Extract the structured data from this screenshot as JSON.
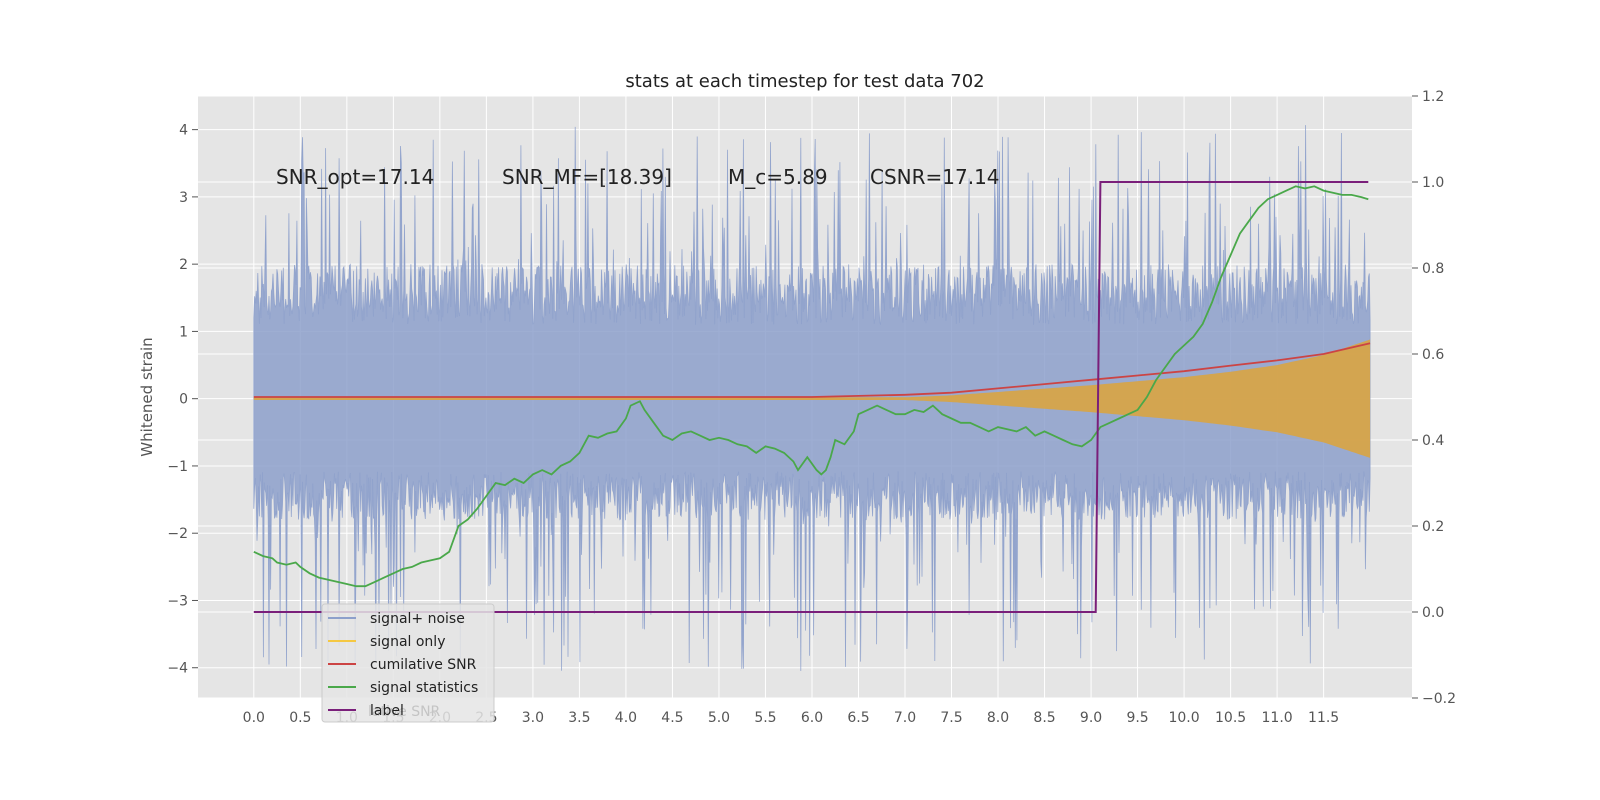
{
  "chart_data": {
    "type": "line",
    "title": "stats at each timestep for test data 702",
    "xlabel": "",
    "ylabel": "Whitened strain",
    "y2label": "",
    "xlim": [
      -0.6,
      12.45
    ],
    "ylim": [
      -4.45,
      4.5
    ],
    "y2lim": [
      -0.2,
      1.2
    ],
    "xticks": [
      "0.0",
      "0.5",
      "1.0",
      "1.5",
      "2.0",
      "2.5",
      "3.0",
      "3.5",
      "4.0",
      "4.5",
      "5.0",
      "5.5",
      "6.0",
      "6.5",
      "7.0",
      "7.5",
      "8.0",
      "8.5",
      "9.0",
      "9.5",
      "10.0",
      "10.5",
      "11.0",
      "11.5"
    ],
    "yticks": [
      "4",
      "3",
      "2",
      "1",
      "0",
      "−1",
      "−2",
      "−3",
      "−4"
    ],
    "y2ticks": [
      "1.2",
      "1.0",
      "0.8",
      "0.6",
      "0.4",
      "0.2",
      "0.0",
      "−0.2"
    ],
    "grid": true,
    "legend_position": "lower-left",
    "annotations": [
      {
        "id": "snr_opt",
        "text": "SNR_opt=17.14"
      },
      {
        "id": "snr_mf",
        "text": "SNR_MF=[18.39]"
      },
      {
        "id": "mc",
        "text": "M_c=5.89"
      },
      {
        "id": "csnr",
        "text": "CSNR=17.14"
      }
    ],
    "series": [
      {
        "name": "signal+ noise",
        "axis": "left",
        "style": "noisy-band",
        "x_range": [
          0.0,
          12.0
        ],
        "envelope_upper": [
          [
            0.0,
            2.0
          ],
          [
            6.0,
            2.0
          ],
          [
            12.0,
            2.0
          ]
        ],
        "envelope_lower": [
          [
            0.0,
            -1.8
          ],
          [
            6.0,
            -1.8
          ],
          [
            12.0,
            -1.8
          ]
        ],
        "spike_max": 4.1,
        "spike_min": -4.05
      },
      {
        "name": "signal only",
        "axis": "left",
        "style": "chirp-band",
        "envelope": [
          [
            0.0,
            0.02
          ],
          [
            7.0,
            0.02
          ],
          [
            7.5,
            0.05
          ],
          [
            8.0,
            0.1
          ],
          [
            8.5,
            0.15
          ],
          [
            9.0,
            0.2
          ],
          [
            9.5,
            0.26
          ],
          [
            10.0,
            0.32
          ],
          [
            10.5,
            0.4
          ],
          [
            11.0,
            0.5
          ],
          [
            11.5,
            0.65
          ],
          [
            12.0,
            0.88
          ]
        ],
        "lower_scale": 1.0
      },
      {
        "name": "cumilative SNR",
        "axis": "right",
        "points": [
          [
            0.0,
            0.5
          ],
          [
            6.0,
            0.5
          ],
          [
            7.0,
            0.505
          ],
          [
            7.5,
            0.51
          ],
          [
            8.0,
            0.52
          ],
          [
            8.5,
            0.53
          ],
          [
            9.0,
            0.54
          ],
          [
            9.5,
            0.55
          ],
          [
            10.0,
            0.56
          ],
          [
            10.5,
            0.573
          ],
          [
            11.0,
            0.585
          ],
          [
            11.5,
            0.6
          ],
          [
            12.0,
            0.625
          ]
        ]
      },
      {
        "name": "signal statistics",
        "axis": "right",
        "points": [
          [
            0.0,
            0.14
          ],
          [
            0.1,
            0.13
          ],
          [
            0.2,
            0.125
          ],
          [
            0.25,
            0.115
          ],
          [
            0.35,
            0.11
          ],
          [
            0.45,
            0.115
          ],
          [
            0.5,
            0.105
          ],
          [
            0.6,
            0.09
          ],
          [
            0.7,
            0.08
          ],
          [
            0.8,
            0.075
          ],
          [
            0.9,
            0.07
          ],
          [
            1.0,
            0.065
          ],
          [
            1.1,
            0.06
          ],
          [
            1.2,
            0.06
          ],
          [
            1.3,
            0.07
          ],
          [
            1.4,
            0.08
          ],
          [
            1.5,
            0.09
          ],
          [
            1.6,
            0.1
          ],
          [
            1.7,
            0.105
          ],
          [
            1.8,
            0.115
          ],
          [
            1.9,
            0.12
          ],
          [
            2.0,
            0.125
          ],
          [
            2.1,
            0.14
          ],
          [
            2.2,
            0.2
          ],
          [
            2.3,
            0.215
          ],
          [
            2.4,
            0.24
          ],
          [
            2.5,
            0.27
          ],
          [
            2.6,
            0.3
          ],
          [
            2.7,
            0.295
          ],
          [
            2.8,
            0.31
          ],
          [
            2.9,
            0.3
          ],
          [
            3.0,
            0.32
          ],
          [
            3.1,
            0.33
          ],
          [
            3.2,
            0.32
          ],
          [
            3.3,
            0.34
          ],
          [
            3.4,
            0.35
          ],
          [
            3.5,
            0.37
          ],
          [
            3.6,
            0.41
          ],
          [
            3.7,
            0.405
          ],
          [
            3.8,
            0.415
          ],
          [
            3.9,
            0.42
          ],
          [
            4.0,
            0.45
          ],
          [
            4.05,
            0.48
          ],
          [
            4.15,
            0.49
          ],
          [
            4.2,
            0.47
          ],
          [
            4.3,
            0.44
          ],
          [
            4.4,
            0.41
          ],
          [
            4.5,
            0.4
          ],
          [
            4.6,
            0.415
          ],
          [
            4.7,
            0.42
          ],
          [
            4.8,
            0.41
          ],
          [
            4.9,
            0.4
          ],
          [
            5.0,
            0.405
          ],
          [
            5.1,
            0.4
          ],
          [
            5.2,
            0.39
          ],
          [
            5.3,
            0.385
          ],
          [
            5.4,
            0.37
          ],
          [
            5.5,
            0.385
          ],
          [
            5.6,
            0.38
          ],
          [
            5.7,
            0.37
          ],
          [
            5.8,
            0.35
          ],
          [
            5.85,
            0.33
          ],
          [
            5.95,
            0.36
          ],
          [
            6.05,
            0.33
          ],
          [
            6.1,
            0.32
          ],
          [
            6.15,
            0.33
          ],
          [
            6.2,
            0.36
          ],
          [
            6.25,
            0.4
          ],
          [
            6.35,
            0.39
          ],
          [
            6.45,
            0.42
          ],
          [
            6.5,
            0.46
          ],
          [
            6.6,
            0.47
          ],
          [
            6.7,
            0.48
          ],
          [
            6.8,
            0.47
          ],
          [
            6.9,
            0.46
          ],
          [
            7.0,
            0.46
          ],
          [
            7.1,
            0.47
          ],
          [
            7.2,
            0.465
          ],
          [
            7.3,
            0.48
          ],
          [
            7.4,
            0.46
          ],
          [
            7.5,
            0.45
          ],
          [
            7.6,
            0.44
          ],
          [
            7.7,
            0.44
          ],
          [
            7.8,
            0.43
          ],
          [
            7.9,
            0.42
          ],
          [
            8.0,
            0.43
          ],
          [
            8.1,
            0.425
          ],
          [
            8.2,
            0.42
          ],
          [
            8.3,
            0.43
          ],
          [
            8.4,
            0.41
          ],
          [
            8.5,
            0.42
          ],
          [
            8.6,
            0.41
          ],
          [
            8.7,
            0.4
          ],
          [
            8.8,
            0.39
          ],
          [
            8.9,
            0.385
          ],
          [
            9.0,
            0.4
          ],
          [
            9.1,
            0.43
          ],
          [
            9.2,
            0.44
          ],
          [
            9.3,
            0.45
          ],
          [
            9.4,
            0.46
          ],
          [
            9.5,
            0.47
          ],
          [
            9.6,
            0.5
          ],
          [
            9.7,
            0.54
          ],
          [
            9.8,
            0.57
          ],
          [
            9.9,
            0.6
          ],
          [
            10.0,
            0.62
          ],
          [
            10.1,
            0.64
          ],
          [
            10.2,
            0.67
          ],
          [
            10.3,
            0.72
          ],
          [
            10.4,
            0.78
          ],
          [
            10.5,
            0.83
          ],
          [
            10.6,
            0.88
          ],
          [
            10.7,
            0.91
          ],
          [
            10.8,
            0.94
          ],
          [
            10.9,
            0.96
          ],
          [
            11.0,
            0.97
          ],
          [
            11.1,
            0.98
          ],
          [
            11.2,
            0.99
          ],
          [
            11.3,
            0.985
          ],
          [
            11.4,
            0.99
          ],
          [
            11.5,
            0.98
          ],
          [
            11.6,
            0.975
          ],
          [
            11.7,
            0.97
          ],
          [
            11.8,
            0.97
          ],
          [
            11.9,
            0.965
          ],
          [
            11.98,
            0.96
          ]
        ]
      },
      {
        "name": "label",
        "axis": "right",
        "points": [
          [
            0.0,
            0.0
          ],
          [
            9.05,
            0.0
          ],
          [
            9.1,
            1.0
          ],
          [
            11.98,
            1.0
          ]
        ]
      }
    ]
  },
  "legend": {
    "items": [
      {
        "label": "signal+ noise",
        "color": "#8da0cb"
      },
      {
        "label": "signal only",
        "color": "#f5c842"
      },
      {
        "label": "cumilative SNR",
        "color": "#cc4444"
      },
      {
        "label": "signal statistics",
        "color": "#4aa84a"
      },
      {
        "label": "label",
        "color": "#7a1f7a"
      }
    ],
    "ghost_text": "lative SNR"
  },
  "colors": {
    "plot_background": "#e5e5e5",
    "grid": "#ffffff",
    "noise_fill": "#8da0cb",
    "signal_fill": "#d9a441"
  }
}
